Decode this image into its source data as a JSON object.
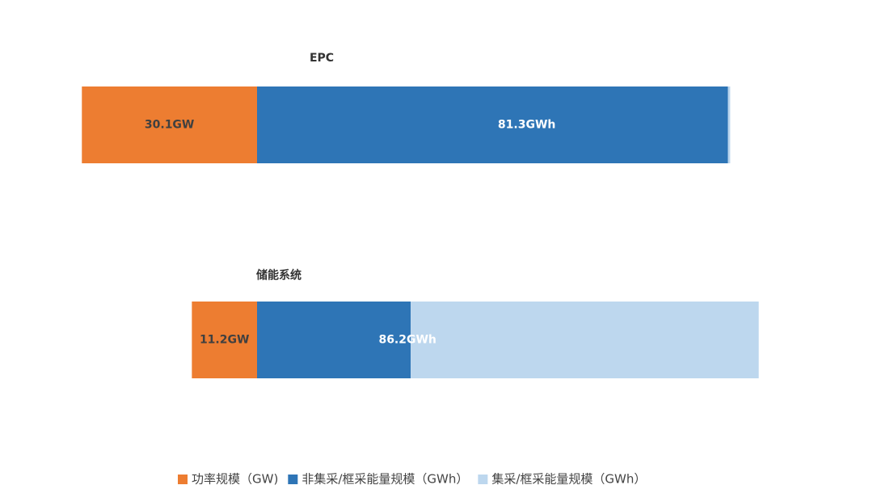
{
  "chart_data": {
    "type": "diverging-bar",
    "categories": [
      "EPC",
      "储能系统"
    ],
    "series": [
      {
        "name": "功率规模（GW)",
        "color": "#ed7d31",
        "values": [
          30.1,
          11.2
        ],
        "value_labels": [
          "30.1GW",
          "11.2GW"
        ]
      },
      {
        "name": "非集采/框采能量规模（GWh）",
        "color": "#2e75b6",
        "values": [
          80.9,
          26.4
        ]
      },
      {
        "name": "集采/框采能量规模（GWh）",
        "color": "#bdd7ee",
        "values": [
          0.4,
          59.8
        ]
      }
    ],
    "totals": {
      "values": [
        81.3,
        86.2
      ],
      "value_labels": [
        "81.3GWh",
        "86.2GWh"
      ]
    },
    "legend": "bottom"
  }
}
